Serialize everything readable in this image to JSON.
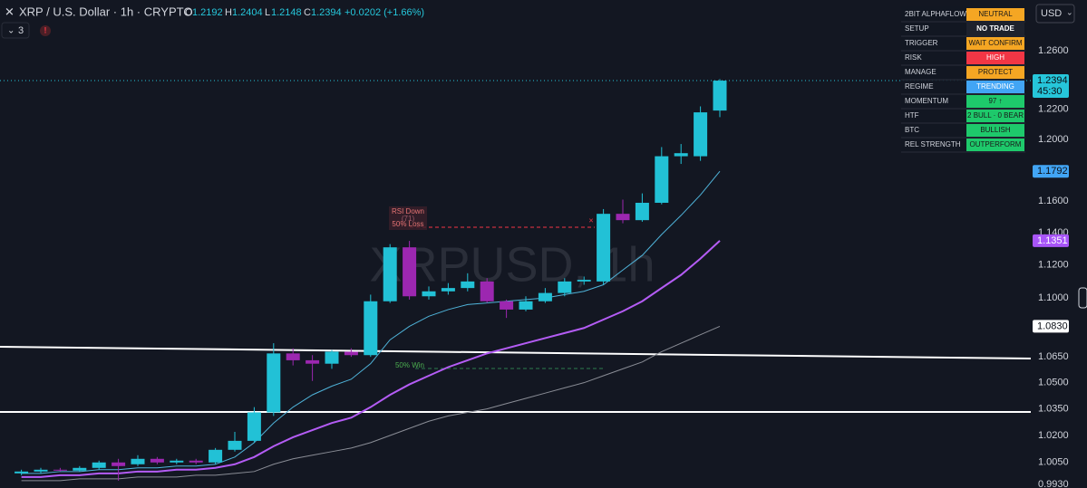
{
  "header": {
    "symbol": "XRP / U.S. Dollar · 1h · CRYPTO",
    "ohlc": [
      {
        "key": "O",
        "value": "1.2192"
      },
      {
        "key": "H",
        "value": "1.2404"
      },
      {
        "key": "L",
        "value": "1.2148"
      },
      {
        "key": "C",
        "value": "1.2394"
      }
    ],
    "change": "+0.0202 (+1.66%)",
    "indicators_count": "3",
    "alert": "!"
  },
  "currency": "USD",
  "countdown": "45:30",
  "watermark": "XRPUSD, 1h",
  "panel": {
    "rows": [
      {
        "label": "2BIT ALPHAFLOW",
        "value": "NEUTRAL",
        "color": "#f5a623",
        "text_color": "#1a1a1a"
      },
      {
        "label": "SETUP",
        "value": "NO TRADE",
        "color": "#1e222d",
        "text_color": "#ffffff"
      },
      {
        "label": "TRIGGER",
        "value": "WAIT CONFIRM",
        "color": "#f5a623",
        "text_color": "#1a1a1a"
      },
      {
        "label": "RISK",
        "value": "HIGH",
        "color": "#f23645",
        "text_color": "#ffffff"
      },
      {
        "label": "MANAGE",
        "value": "PROTECT",
        "color": "#f5a623",
        "text_color": "#1a1a1a"
      },
      {
        "label": "REGIME",
        "value": "TRENDING",
        "color": "#42a5f5",
        "text_color": "#ffffff"
      },
      {
        "label": "MOMENTUM",
        "value": "97 ↑",
        "color": "#1ec96b",
        "text_color": "#1a1a1a"
      },
      {
        "label": "HTF",
        "value": "2 BULL · 0 BEAR",
        "color": "#1ec96b",
        "text_color": "#1a1a1a"
      },
      {
        "label": "BTC",
        "value": "BULLISH",
        "color": "#1ec96b",
        "text_color": "#1a1a1a"
      },
      {
        "label": "REL STRENGTH",
        "value": "OUTPERFORM",
        "color": "#1ec96b",
        "text_color": "#1a1a1a"
      }
    ]
  },
  "chart_data": {
    "type": "candlestick",
    "log_scale": true,
    "ylim": [
      0.991,
      1.2955
    ],
    "yticks": [
      {
        "value": 0.993,
        "label": "0.9930"
      },
      {
        "value": 1.005,
        "label": "1.0050"
      },
      {
        "value": 1.02,
        "label": "1.0200"
      },
      {
        "value": 1.035,
        "label": "1.0350"
      },
      {
        "value": 1.05,
        "label": "1.0500"
      },
      {
        "value": 1.065,
        "label": "1.0650"
      },
      {
        "value": 1.1,
        "label": "1.1000"
      },
      {
        "value": 1.12,
        "label": "1.1200"
      },
      {
        "value": 1.14,
        "label": "1.1400"
      },
      {
        "value": 1.16,
        "label": "1.1600"
      },
      {
        "value": 1.2,
        "label": "1.2000"
      },
      {
        "value": 1.22,
        "label": "1.2200"
      },
      {
        "value": 1.26,
        "label": "1.2600"
      }
    ],
    "up_color": "#22c1d6",
    "down_color": "#9c27b0",
    "open": [
      0.999,
      1.0,
      1.001,
      1.0005,
      1.002,
      1.005,
      1.004,
      1.007,
      1.005,
      1.006,
      1.005,
      1.012,
      1.017,
      1.033,
      1.067,
      1.063,
      1.061,
      1.068,
      1.066,
      1.098,
      1.131,
      1.101,
      1.104,
      1.106,
      1.11,
      1.098,
      1.093,
      1.098,
      1.103,
      1.11,
      1.11,
      1.152,
      1.148,
      1.159,
      1.189,
      1.189,
      1.2192
    ],
    "high": [
      1.001,
      1.002,
      1.002,
      1.003,
      1.006,
      1.007,
      1.009,
      1.008,
      1.007,
      1.007,
      1.013,
      1.022,
      1.036,
      1.073,
      1.07,
      1.066,
      1.069,
      1.07,
      1.102,
      1.133,
      1.135,
      1.107,
      1.109,
      1.115,
      1.112,
      1.099,
      1.101,
      1.106,
      1.112,
      1.113,
      1.155,
      1.161,
      1.165,
      1.195,
      1.197,
      1.222,
      1.2404
    ],
    "low": [
      0.998,
      0.999,
      1.0,
      1.0,
      1.001,
      0.995,
      1.003,
      1.004,
      1.004,
      1.004,
      1.004,
      1.011,
      1.016,
      1.031,
      1.06,
      1.051,
      1.058,
      1.065,
      1.065,
      1.097,
      1.099,
      1.099,
      1.102,
      1.104,
      1.097,
      1.088,
      1.092,
      1.097,
      1.101,
      1.108,
      1.108,
      1.146,
      1.147,
      1.158,
      1.184,
      1.186,
      1.2148
    ],
    "close": [
      1.0,
      1.001,
      1.0005,
      1.002,
      1.005,
      1.003,
      1.007,
      1.005,
      1.006,
      1.005,
      1.012,
      1.017,
      1.033,
      1.067,
      1.063,
      1.061,
      1.068,
      1.066,
      1.098,
      1.131,
      1.101,
      1.104,
      1.106,
      1.11,
      1.098,
      1.093,
      1.098,
      1.103,
      1.11,
      1.111,
      1.152,
      1.148,
      1.159,
      1.189,
      1.191,
      1.218,
      1.2394
    ],
    "lines": [
      {
        "color": "#4fb3d9",
        "width": 1,
        "values": [
          0.999,
          0.999,
          1.0,
          1.0,
          1.001,
          1.001,
          1.002,
          1.002,
          1.003,
          1.003,
          1.004,
          1.008,
          1.016,
          1.027,
          1.036,
          1.043,
          1.048,
          1.052,
          1.061,
          1.075,
          1.083,
          1.089,
          1.093,
          1.096,
          1.097,
          1.098,
          1.099,
          1.1,
          1.102,
          1.104,
          1.108,
          1.117,
          1.126,
          1.139,
          1.151,
          1.164,
          1.1792
        ]
      },
      {
        "color": "#b45cf5",
        "width": 2,
        "values": [
          0.997,
          0.997,
          0.998,
          0.998,
          0.999,
          0.999,
          1.0,
          1.0,
          1.001,
          1.001,
          1.002,
          1.004,
          1.008,
          1.014,
          1.019,
          1.023,
          1.027,
          1.03,
          1.036,
          1.043,
          1.049,
          1.054,
          1.059,
          1.063,
          1.067,
          1.07,
          1.073,
          1.076,
          1.079,
          1.082,
          1.087,
          1.092,
          1.098,
          1.106,
          1.114,
          1.124,
          1.1351
        ]
      },
      {
        "color": "#8a8d96",
        "width": 1,
        "values": [
          0.995,
          0.995,
          0.995,
          0.996,
          0.996,
          0.996,
          0.997,
          0.997,
          0.997,
          0.998,
          0.998,
          0.999,
          1.0,
          1.004,
          1.007,
          1.009,
          1.011,
          1.013,
          1.016,
          1.02,
          1.024,
          1.028,
          1.031,
          1.033,
          1.035,
          1.038,
          1.041,
          1.044,
          1.047,
          1.05,
          1.054,
          1.058,
          1.062,
          1.068,
          1.073,
          1.078,
          1.083
        ]
      }
    ],
    "price_tags": [
      {
        "value": 1.2394,
        "label": "1.2394",
        "color": "#26c6da",
        "text_color": "#0b0e15"
      },
      {
        "value": 1.1792,
        "label": "1.1792",
        "color": "#42a5f5",
        "text_color": "#0b0e15"
      },
      {
        "value": 1.1351,
        "label": "1.1351",
        "color": "#a855f7",
        "text_color": "#ffffff"
      },
      {
        "value": 1.083,
        "label": "1.0830",
        "color": "#ffffff",
        "text_color": "#0b0e15"
      }
    ],
    "annotations": [
      {
        "text": "RSI Down"
      },
      {
        "text": "(71)"
      },
      {
        "text": "50% Loss"
      },
      {
        "text": "50% Win"
      }
    ]
  }
}
